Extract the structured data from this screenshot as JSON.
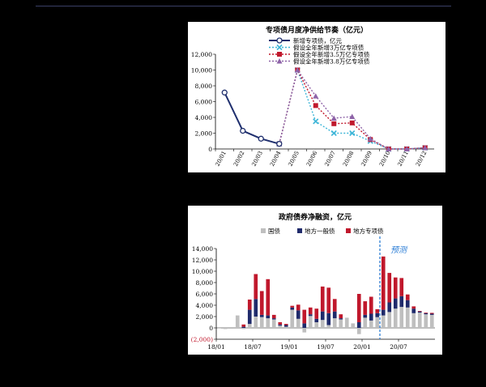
{
  "charts": {
    "chart1": {
      "title": "专项债月度净供给节奏（亿元）",
      "legend": [
        {
          "label": "新增专项债，亿元",
          "color": "#1f2f6e",
          "style": "solid",
          "marker": "circle"
        },
        {
          "label": "假设全年新增3万亿专项债",
          "color": "#3fb6d8",
          "style": "dotted",
          "marker": "x"
        },
        {
          "label": "假设全年新增3.5万亿专项债",
          "color": "#c0182c",
          "style": "dotted",
          "marker": "square"
        },
        {
          "label": "假设全年新增3.8万亿专项债",
          "color": "#8e63a8",
          "style": "dotted",
          "marker": "triangle"
        }
      ],
      "ytick_labels": [
        "0",
        "2,000",
        "4,000",
        "6,000",
        "8,000",
        "10,000",
        "12,000"
      ],
      "xtick_labels": [
        "20/01",
        "20/02",
        "20/03",
        "20/04",
        "20/05",
        "20/06",
        "20/07",
        "20/08",
        "20/09",
        "20/10",
        "20/11",
        "20/12"
      ]
    },
    "chart2": {
      "title": "政府债券净融资，亿元",
      "legend": [
        {
          "label": "国债",
          "color": "#bfbfbf"
        },
        {
          "label": "地方一般债",
          "color": "#1f2a6b"
        },
        {
          "label": "地方专项债",
          "color": "#c0182c"
        }
      ],
      "forecast_label": "预测",
      "ytick_labels": [
        "(2,000)",
        "0",
        "2,000",
        "4,000",
        "6,000",
        "8,000",
        "10,000",
        "12,000",
        "14,000"
      ],
      "xtick_labels": [
        "18/01",
        "18/07",
        "19/01",
        "19/07",
        "20/01",
        "20/07"
      ]
    }
  },
  "chart_data": [
    {
      "type": "line",
      "title": "专项债月度净供给节奏（亿元）",
      "categories": [
        "20/01",
        "20/02",
        "20/03",
        "20/04",
        "20/05",
        "20/06",
        "20/07",
        "20/08",
        "20/09",
        "20/10",
        "20/11",
        "20/12"
      ],
      "ylim": [
        0,
        12000
      ],
      "series": [
        {
          "name": "新增专项债，亿元",
          "values": [
            7150,
            2300,
            1300,
            650,
            null,
            null,
            null,
            null,
            null,
            null,
            null,
            null
          ]
        },
        {
          "name": "假设全年新增3万亿专项债",
          "values": [
            null,
            null,
            null,
            650,
            10000,
            3500,
            2000,
            2000,
            1000,
            0,
            0,
            150
          ]
        },
        {
          "name": "假设全年新增3.5万亿专项债",
          "values": [
            null,
            null,
            null,
            650,
            10000,
            5500,
            3200,
            3300,
            1200,
            0,
            0,
            150
          ]
        },
        {
          "name": "假设全年新增3.8万亿专项债",
          "values": [
            null,
            null,
            null,
            650,
            10000,
            6700,
            3900,
            4100,
            1300,
            0,
            0,
            150
          ]
        }
      ]
    },
    {
      "type": "bar",
      "stacked": true,
      "title": "政府债券净融资，亿元",
      "ylim": [
        -2000,
        14000
      ],
      "forecast_start_index": 27,
      "categories": [
        "18/01",
        "18/02",
        "18/03",
        "18/04",
        "18/05",
        "18/06",
        "18/07",
        "18/08",
        "18/09",
        "18/10",
        "18/11",
        "18/12",
        "19/01",
        "19/02",
        "19/03",
        "19/04",
        "19/05",
        "19/06",
        "19/07",
        "19/08",
        "19/09",
        "19/10",
        "19/11",
        "19/12",
        "20/01",
        "20/02",
        "20/03",
        "20/04",
        "20/05",
        "20/06",
        "20/07",
        "20/08",
        "20/09",
        "20/10",
        "20/11",
        "20/12"
      ],
      "series": [
        {
          "name": "国债",
          "values": [
            -100,
            -200,
            -150,
            2200,
            -200,
            700,
            2000,
            1900,
            1700,
            1500,
            400,
            200,
            3200,
            1600,
            -800,
            2100,
            1000,
            1400,
            500,
            1700,
            1500,
            1800,
            800,
            -1100,
            1800,
            1300,
            1900,
            2200,
            2800,
            3400,
            3700,
            3600,
            2600,
            2700,
            2400,
            2300
          ]
        },
        {
          "name": "地方一般债",
          "values": [
            0,
            0,
            0,
            0,
            200,
            2500,
            3100,
            400,
            500,
            200,
            200,
            300,
            400,
            1500,
            800,
            300,
            600,
            1500,
            2100,
            1200,
            200,
            0,
            0,
            1000,
            500,
            1200,
            700,
            1000,
            1700,
            1800,
            1900,
            1300,
            800,
            200,
            200,
            200
          ]
        },
        {
          "name": "地方专项债",
          "values": [
            0,
            0,
            0,
            0,
            400,
            1800,
            4400,
            4200,
            6400,
            600,
            400,
            200,
            300,
            1000,
            2400,
            1200,
            1800,
            4400,
            4500,
            2200,
            700,
            0,
            0,
            5000,
            2400,
            3000,
            700,
            9400,
            5200,
            3700,
            3200,
            1000,
            400,
            100,
            100,
            150
          ]
        }
      ]
    }
  ]
}
